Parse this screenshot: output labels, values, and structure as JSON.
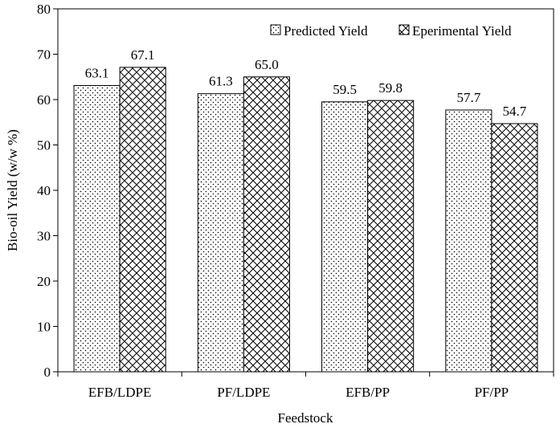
{
  "chart_data": {
    "type": "bar",
    "categories": [
      "EFB/LDPE",
      "PF/LDPE",
      "EFB/PP",
      "PF/PP"
    ],
    "series": [
      {
        "name": "Predicted Yield",
        "values": [
          63.1,
          61.3,
          59.5,
          57.7
        ],
        "labels": [
          "63.1",
          "61.3",
          "59.5",
          "57.7"
        ],
        "pattern": "dots"
      },
      {
        "name": "Eperimental Yield",
        "values": [
          67.1,
          65.0,
          59.8,
          54.7
        ],
        "labels": [
          "67.1",
          "65.0",
          "59.8",
          "54.7"
        ],
        "pattern": "zigzag"
      }
    ],
    "xlabel": "Feedstock",
    "ylabel": "Bio-oil Yield (w/w %)",
    "ylim": [
      0,
      80
    ],
    "yticks": [
      0,
      10,
      20,
      30,
      40,
      50,
      60,
      70,
      80
    ],
    "grid": false,
    "legend_position": "top-right"
  }
}
